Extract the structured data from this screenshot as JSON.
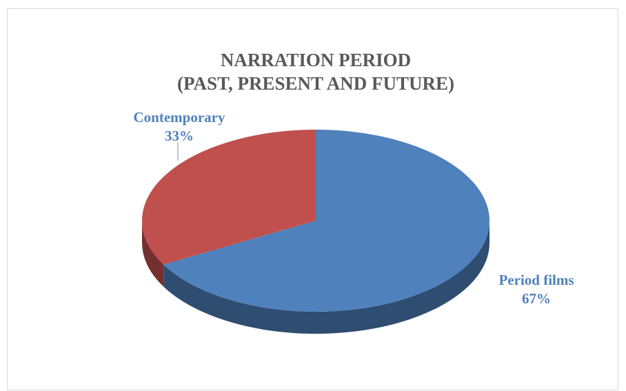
{
  "chart_data": {
    "type": "pie3d",
    "title": [
      "NARRATION PERIOD",
      "(PAST, PRESENT AND FUTURE)"
    ],
    "categories": [
      "Period films",
      "Contemporary"
    ],
    "values": [
      67,
      33
    ],
    "value_labels": [
      "67%",
      "33%"
    ],
    "colors": [
      "#4f81bd",
      "#c0504d"
    ]
  }
}
